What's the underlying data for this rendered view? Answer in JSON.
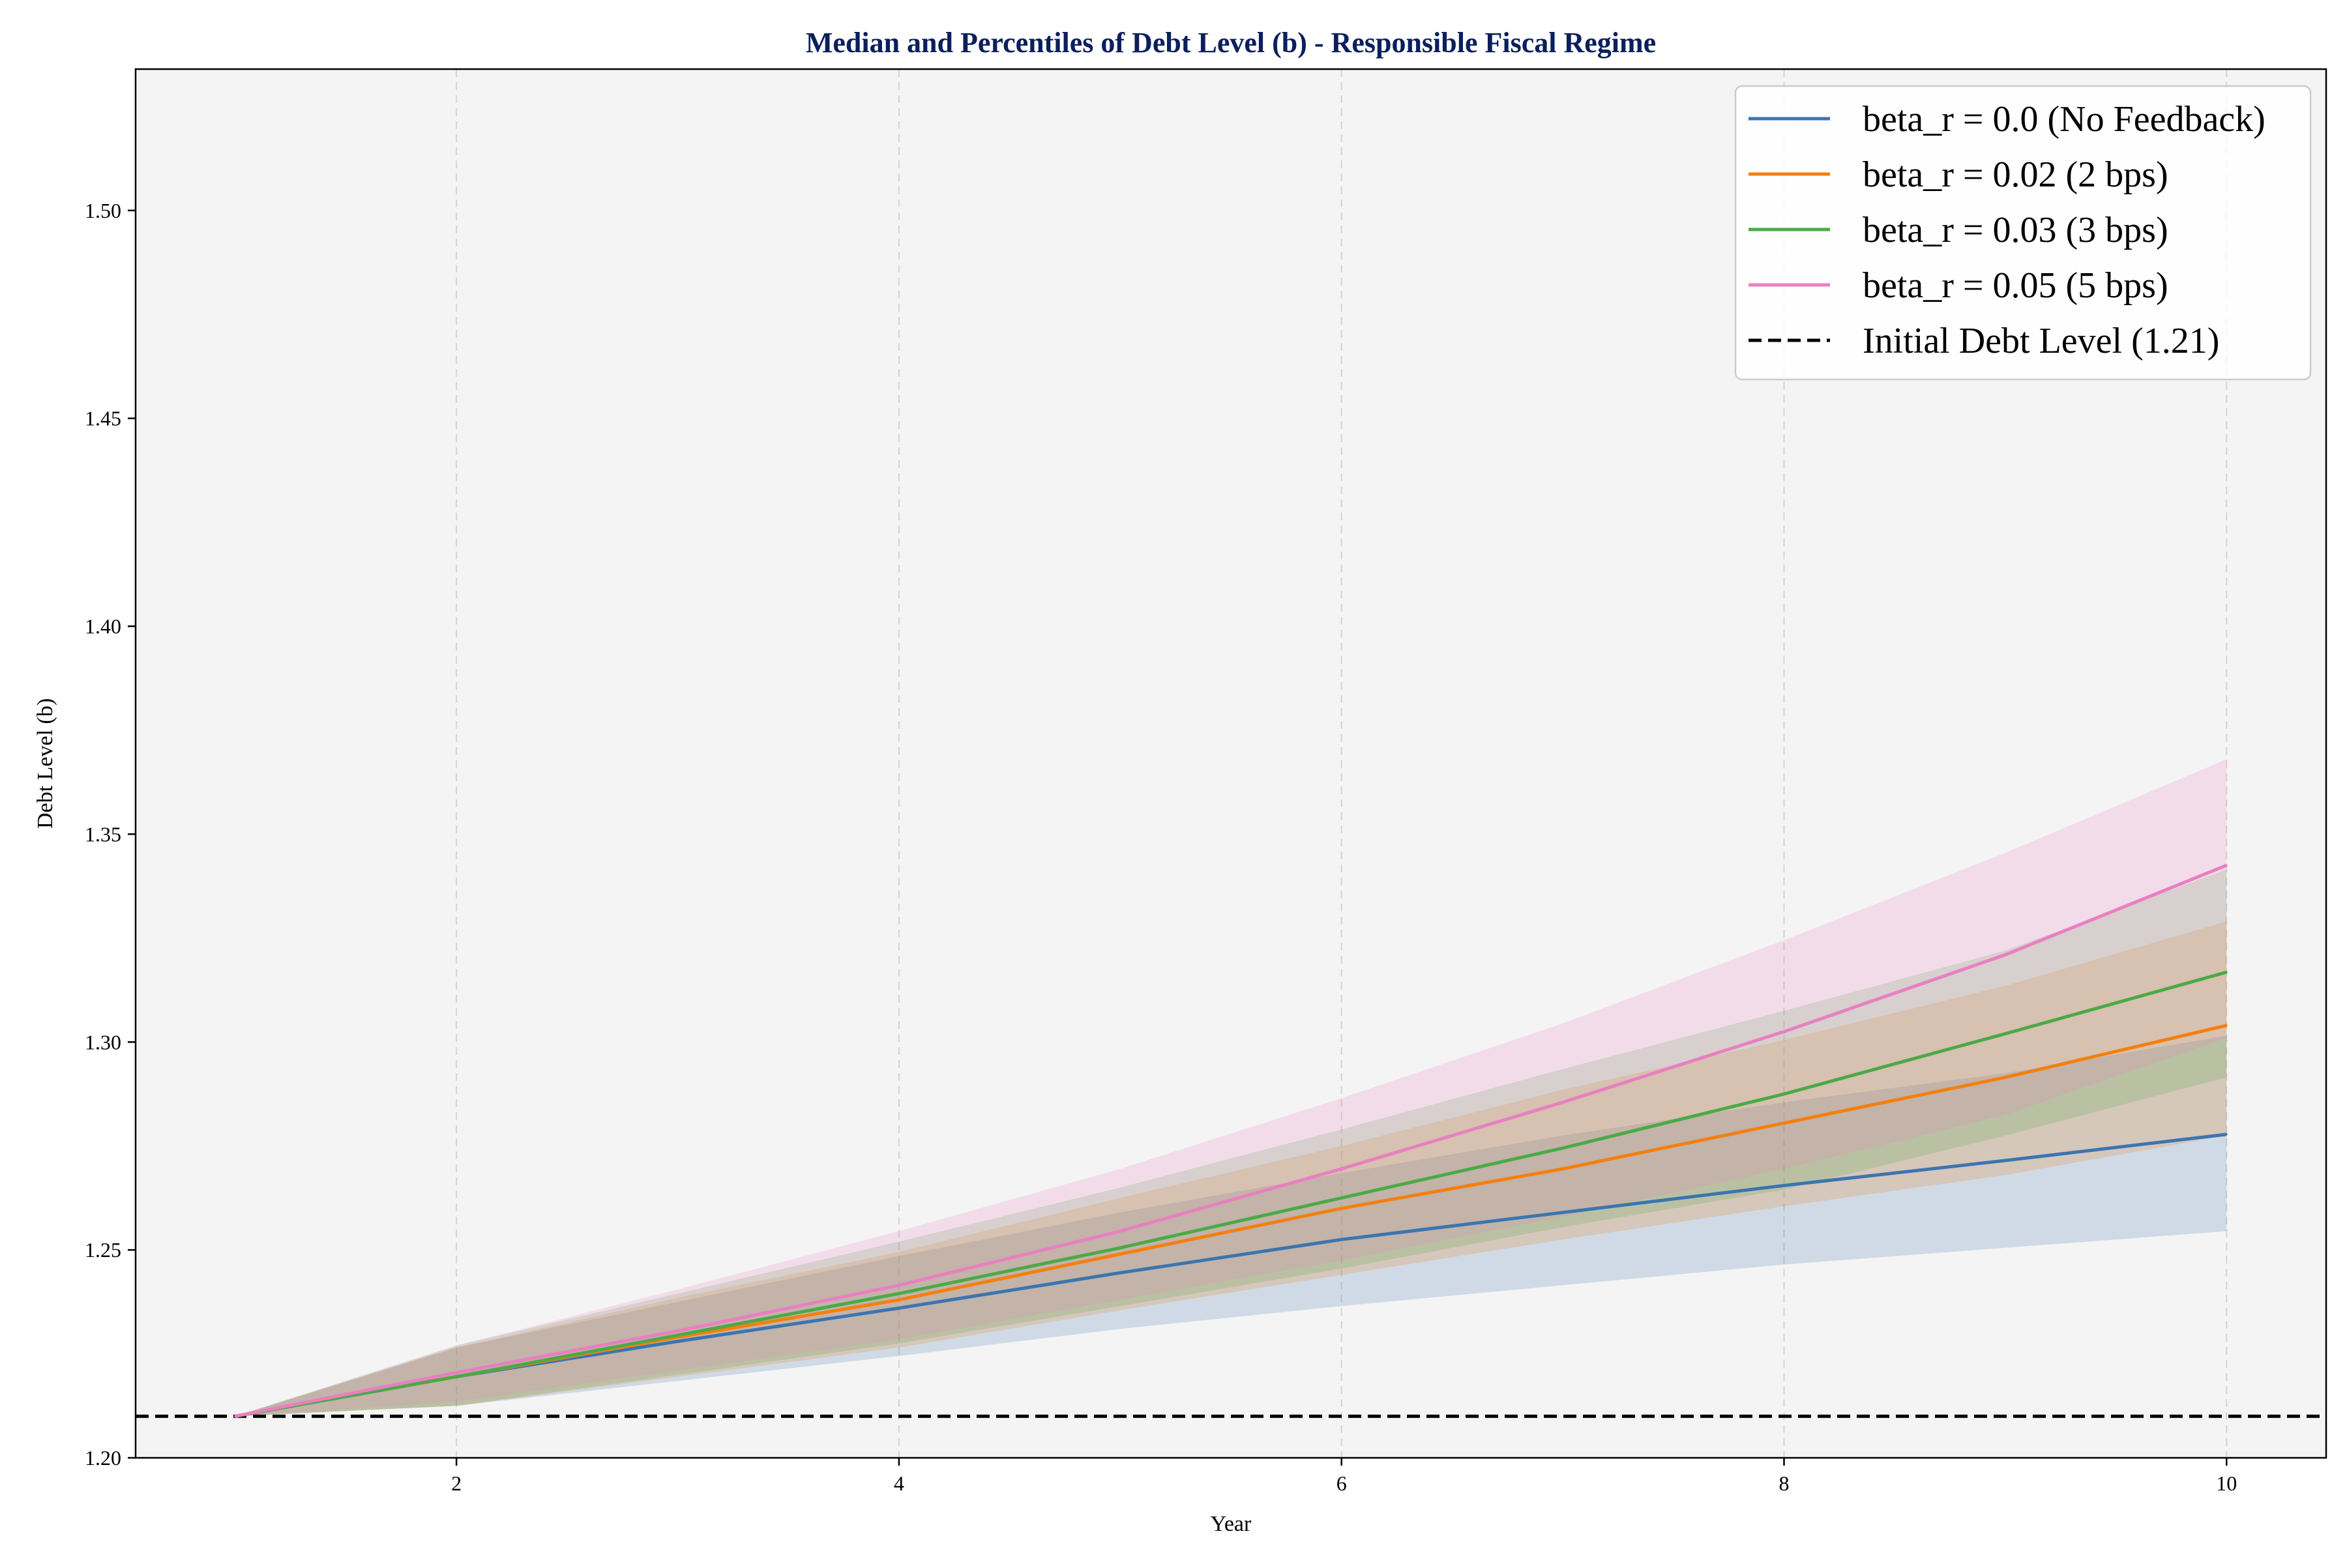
{
  "chart_data": {
    "type": "line",
    "title": "Median and Percentiles of Debt Level (b) - Responsible Fiscal Regime",
    "xlabel": "Year",
    "ylabel": "Debt Level (b)",
    "xlim": [
      0.55,
      10.45
    ],
    "ylim": [
      1.2,
      1.534
    ],
    "x_ticks": [
      2,
      4,
      6,
      8,
      10
    ],
    "y_ticks": [
      1.2,
      1.25,
      1.3,
      1.35,
      1.4,
      1.45,
      1.5
    ],
    "y_tick_labels": [
      "1.20",
      "1.25",
      "1.30",
      "1.35",
      "1.40",
      "1.45",
      "1.50"
    ],
    "grid": "x-only dashed",
    "legend_position": "top-right",
    "x": [
      1,
      2,
      3,
      4,
      5,
      6,
      7,
      8,
      9,
      10
    ],
    "series": [
      {
        "name": "beta_r = 0.0 (No Feedback)",
        "color": "#3a75b0",
        "median": [
          1.21,
          1.2195,
          1.228,
          1.236,
          1.2445,
          1.2525,
          1.259,
          1.2655,
          1.2715,
          1.2778
        ],
        "lower": [
          1.21,
          1.2125,
          1.2185,
          1.2245,
          1.231,
          1.2365,
          1.2415,
          1.2465,
          1.2505,
          1.2545
        ],
        "upper": [
          1.21,
          1.2265,
          1.2375,
          1.2485,
          1.259,
          1.2685,
          1.2775,
          1.2855,
          1.2925,
          1.3015
        ]
      },
      {
        "name": "beta_r = 0.02 (2 bps)",
        "color": "#f57f0e",
        "median": [
          1.21,
          1.2195,
          1.229,
          1.238,
          1.249,
          1.26,
          1.2695,
          1.2805,
          1.2915,
          1.304
        ],
        "lower": [
          1.21,
          1.2125,
          1.2195,
          1.2265,
          1.2355,
          1.244,
          1.2525,
          1.2605,
          1.268,
          1.2775
        ],
        "upper": [
          1.21,
          1.2265,
          1.2385,
          1.2495,
          1.2625,
          1.275,
          1.2885,
          1.3005,
          1.3135,
          1.329
        ]
      },
      {
        "name": "beta_r = 0.03 (3 bps)",
        "color": "#4aaa46",
        "median": [
          1.21,
          1.2195,
          1.2295,
          1.2395,
          1.2505,
          1.2625,
          1.2745,
          1.2875,
          1.302,
          1.3168
        ],
        "lower": [
          1.21,
          1.2125,
          1.22,
          1.2275,
          1.2365,
          1.2455,
          1.2555,
          1.2645,
          1.2775,
          1.2915
        ],
        "upper": [
          1.21,
          1.227,
          1.2395,
          1.252,
          1.265,
          1.279,
          1.2935,
          1.3075,
          1.322,
          1.3415
        ]
      },
      {
        "name": "beta_r = 0.05 (5 bps)",
        "color": "#e97fc1",
        "median": [
          1.21,
          1.2205,
          1.2305,
          1.2415,
          1.2545,
          1.2695,
          1.2855,
          1.3025,
          1.321,
          1.3425
        ],
        "lower": [
          1.21,
          1.2135,
          1.221,
          1.2285,
          1.238,
          1.2475,
          1.258,
          1.2695,
          1.2825,
          1.301
        ],
        "upper": [
          1.21,
          1.227,
          1.2405,
          1.2545,
          1.2695,
          1.2865,
          1.3045,
          1.3245,
          1.3455,
          1.368
        ]
      }
    ],
    "reference_line": {
      "name": "Initial Debt Level (1.21)",
      "y": 1.21,
      "color": "#000000",
      "style": "dashed"
    },
    "plot_background": "#f4f4f4"
  }
}
